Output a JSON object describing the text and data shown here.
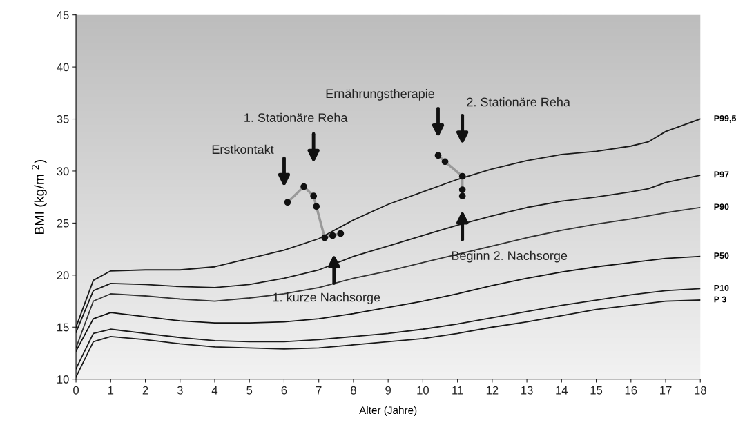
{
  "chart_data": {
    "type": "line",
    "xlabel": "Alter (Jahre)",
    "ylabel": "BMI (kg/m $^{2}$)",
    "xlim": [
      0,
      18
    ],
    "ylim": [
      10,
      45
    ],
    "xticks": [
      0,
      1,
      2,
      3,
      4,
      5,
      6,
      7,
      8,
      9,
      10,
      11,
      12,
      13,
      14,
      15,
      16,
      17,
      18
    ],
    "yticks": [
      10,
      15,
      20,
      25,
      30,
      35,
      40,
      45
    ],
    "grid": false,
    "legend": false,
    "series": [
      {
        "name": "P99,5",
        "color": "#1a1a1a",
        "x": [
          0,
          0.5,
          1,
          2,
          3,
          4,
          5,
          6,
          7,
          8,
          9,
          10,
          11,
          12,
          13,
          14,
          15,
          16,
          16.5,
          17,
          18
        ],
        "values": [
          15.0,
          19.5,
          20.4,
          20.5,
          20.5,
          20.8,
          21.6,
          22.4,
          23.5,
          25.3,
          26.8,
          28.0,
          29.2,
          30.2,
          31.0,
          31.6,
          31.9,
          32.4,
          32.8,
          33.8,
          35.0
        ]
      },
      {
        "name": "P97",
        "color": "#1a1a1a",
        "x": [
          0,
          0.5,
          1,
          2,
          3,
          4,
          5,
          6,
          7,
          8,
          9,
          10,
          11,
          12,
          13,
          14,
          15,
          16,
          16.5,
          17,
          18
        ],
        "values": [
          14.5,
          18.5,
          19.2,
          19.1,
          18.9,
          18.8,
          19.1,
          19.7,
          20.5,
          21.8,
          22.8,
          23.8,
          24.8,
          25.7,
          26.5,
          27.1,
          27.5,
          28.0,
          28.3,
          28.9,
          29.6
        ]
      },
      {
        "name": "P90",
        "color": "#333333",
        "x": [
          0,
          0.5,
          1,
          2,
          3,
          4,
          5,
          6,
          7,
          8,
          9,
          10,
          11,
          12,
          13,
          14,
          15,
          16,
          17,
          18
        ],
        "values": [
          13.0,
          17.5,
          18.2,
          18.0,
          17.7,
          17.5,
          17.8,
          18.2,
          18.8,
          19.7,
          20.4,
          21.2,
          22.0,
          22.8,
          23.6,
          24.3,
          24.9,
          25.4,
          26.0,
          26.5
        ]
      },
      {
        "name": "P50",
        "color": "#111111",
        "x": [
          0,
          0.5,
          1,
          2,
          3,
          4,
          5,
          6,
          7,
          8,
          9,
          10,
          11,
          12,
          13,
          14,
          15,
          16,
          17,
          18
        ],
        "values": [
          12.7,
          15.8,
          16.4,
          16.0,
          15.6,
          15.4,
          15.4,
          15.5,
          15.8,
          16.3,
          16.9,
          17.5,
          18.2,
          19.0,
          19.7,
          20.3,
          20.8,
          21.2,
          21.6,
          21.8
        ]
      },
      {
        "name": "P10",
        "color": "#1a1a1a",
        "x": [
          0,
          0.5,
          1,
          2,
          3,
          4,
          5,
          6,
          7,
          8,
          9,
          10,
          11,
          12,
          13,
          14,
          15,
          16,
          17,
          18
        ],
        "values": [
          11.0,
          14.4,
          14.8,
          14.4,
          14.0,
          13.7,
          13.6,
          13.6,
          13.8,
          14.1,
          14.4,
          14.8,
          15.3,
          15.9,
          16.5,
          17.1,
          17.6,
          18.1,
          18.5,
          18.7
        ]
      },
      {
        "name": "P 3",
        "color": "#1a1a1a",
        "x": [
          0,
          0.5,
          1,
          2,
          3,
          4,
          5,
          6,
          7,
          8,
          9,
          10,
          11,
          12,
          13,
          14,
          15,
          16,
          17,
          18
        ],
        "values": [
          10.2,
          13.6,
          14.1,
          13.8,
          13.4,
          13.1,
          13.0,
          12.9,
          13.0,
          13.3,
          13.6,
          13.9,
          14.4,
          15.0,
          15.5,
          16.1,
          16.7,
          17.1,
          17.5,
          17.6
        ]
      },
      {
        "color": "#111111",
        "marker": "circle",
        "x": [
          6.1,
          6.57,
          6.85,
          6.93,
          7.17,
          7.4,
          7.63,
          9.0,
          10.44,
          10.64,
          11.14,
          11.14,
          11.14
        ],
        "values": [
          27.0,
          28.5,
          27.6,
          26.6,
          23.6,
          23.8,
          24.0,
          null,
          31.5,
          30.9,
          29.5,
          28.2,
          27.6
        ]
      }
    ],
    "annotations": [
      "Erstkontakt",
      "1. Stationäre Reha",
      "Ernährungstherapie",
      "2. Stationäre Reha",
      "1. kurze Nachsorge",
      "Beginn 2. Nachsorge"
    ]
  }
}
